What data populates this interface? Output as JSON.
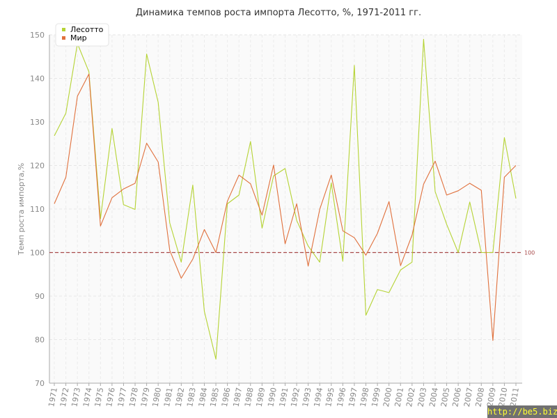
{
  "chart_data": {
    "type": "line",
    "title": "Динамика темпов роста импорта Лесотто, %, 1971-2011 гг.",
    "xlabel": "",
    "ylabel": "Темп роста импорта,%",
    "ylim": [
      70,
      150
    ],
    "yticks": [
      70,
      80,
      90,
      100,
      110,
      120,
      130,
      140,
      150
    ],
    "grid": true,
    "legend_position": "top-left",
    "x": [
      1971,
      1972,
      1973,
      1974,
      1975,
      1976,
      1977,
      1978,
      1979,
      1980,
      1981,
      1982,
      1983,
      1984,
      1985,
      1986,
      1987,
      1988,
      1989,
      1990,
      1991,
      1992,
      1993,
      1994,
      1995,
      1996,
      1997,
      1998,
      1999,
      2000,
      2001,
      2002,
      2003,
      2004,
      2005,
      2006,
      2007,
      2008,
      2009,
      2010,
      2011
    ],
    "series": [
      {
        "name": "Лесотто",
        "color": "#b5d334",
        "values": [
          126.8,
          132,
          148,
          141.5,
          107.8,
          128.5,
          111,
          109.9,
          145.6,
          134.5,
          106.8,
          97.8,
          115.5,
          86.5,
          75.5,
          111.2,
          113.2,
          125.5,
          105.6,
          117.6,
          119.3,
          107.4,
          101.5,
          97.8,
          116,
          98,
          143,
          85.6,
          91.5,
          90.8,
          96,
          97.8,
          149,
          114,
          106.5,
          100,
          111.6,
          100,
          100,
          126.4,
          112.4
        ]
      },
      {
        "name": "Мир",
        "color": "#e0703c",
        "values": [
          111.2,
          117.3,
          135.9,
          141,
          106.1,
          112.6,
          114.6,
          115.9,
          125.1,
          120.8,
          100.5,
          94.1,
          98.5,
          105.3,
          100,
          111.8,
          117.8,
          115.8,
          108.6,
          120.1,
          102,
          111.2,
          96.9,
          109.9,
          117.8,
          105,
          103.4,
          99.4,
          104.4,
          111.7,
          97,
          104,
          115.7,
          121,
          113.2,
          114.2,
          115.9,
          114.3,
          79.8,
          117.3,
          120
        ]
      }
    ],
    "reference_line": {
      "value": 100,
      "label": "100",
      "color": "#a84a4a"
    }
  },
  "watermark": "http://be5.biz/"
}
